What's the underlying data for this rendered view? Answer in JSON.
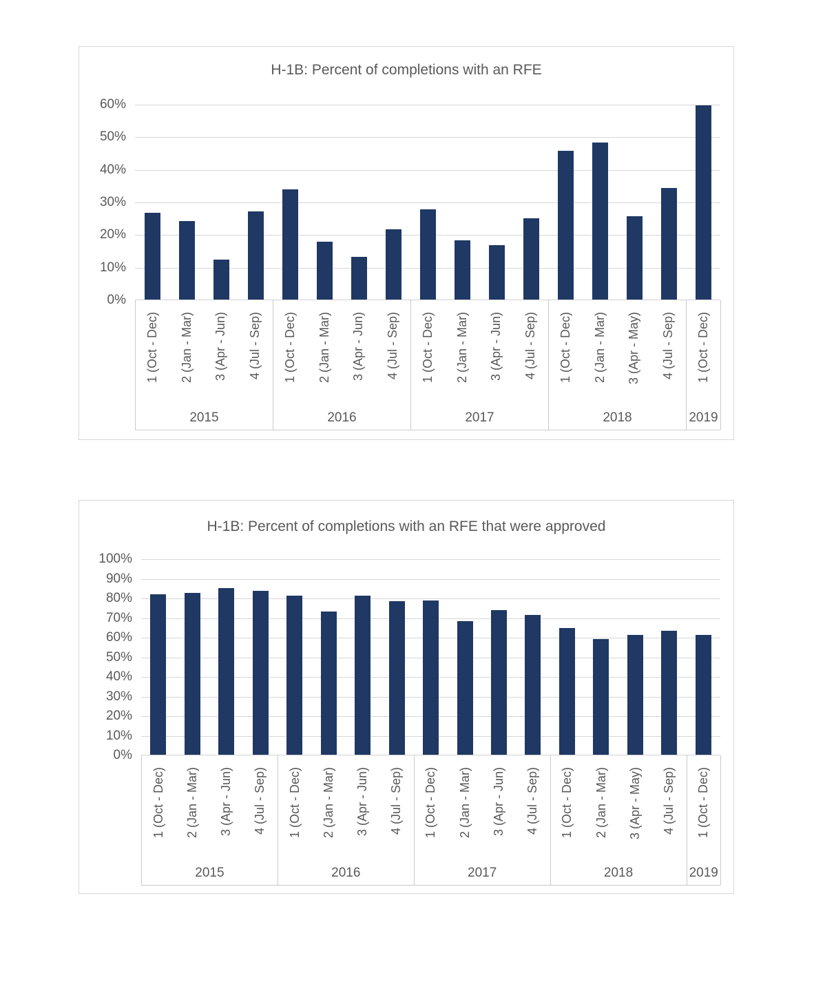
{
  "colors": {
    "bar": "#1F3864",
    "text": "#595959",
    "gridline": "#D7D7D7",
    "axis_table_border": "#C9C9C9"
  },
  "chart_data": [
    {
      "type": "bar",
      "title": "H-1B: Percent of completions with an RFE",
      "ylabel": "",
      "xlabel": "",
      "ylim": [
        0,
        60
      ],
      "ytick_step": 10,
      "yticks": [
        "0%",
        "10%",
        "20%",
        "30%",
        "40%",
        "50%",
        "60%"
      ],
      "grid": true,
      "legend": "none",
      "bar_color": "#1F3864",
      "groups": [
        {
          "year": "2015",
          "quarters": [
            "1 (Oct - Dec)",
            "2 (Jan - Mar)",
            "3 (Apr - Jun)",
            "4 (Jul - Sep)"
          ]
        },
        {
          "year": "2016",
          "quarters": [
            "1 (Oct - Dec)",
            "2 (Jan - Mar)",
            "3 (Apr - Jun)",
            "4 (Jul - Sep)"
          ]
        },
        {
          "year": "2017",
          "quarters": [
            "1 (Oct - Dec)",
            "2 (Jan - Mar)",
            "3 (Apr - Jun)",
            "4 (Jul - Sep)"
          ]
        },
        {
          "year": "2018",
          "quarters": [
            "1 (Oct - Dec)",
            "2 (Jan - Mar)",
            "3 (Apr - May)",
            "4 (Jul - Sep)"
          ]
        },
        {
          "year": "2019",
          "quarters": [
            "1 (Oct - Dec)"
          ]
        }
      ],
      "values": [
        26.6,
        24.1,
        12.3,
        27.1,
        33.9,
        17.8,
        13.1,
        21.6,
        27.6,
        18.1,
        16.8,
        24.9,
        45.6,
        48.1,
        25.5,
        34.3,
        59.6
      ]
    },
    {
      "type": "bar",
      "title": "H-1B: Percent of completions with an RFE that were approved",
      "ylabel": "",
      "xlabel": "",
      "ylim": [
        0,
        100
      ],
      "ytick_step": 10,
      "yticks": [
        "0%",
        "10%",
        "20%",
        "30%",
        "40%",
        "50%",
        "60%",
        "70%",
        "80%",
        "90%",
        "100%"
      ],
      "grid": true,
      "legend": "none",
      "bar_color": "#1F3864",
      "groups": [
        {
          "year": "2015",
          "quarters": [
            "1 (Oct - Dec)",
            "2 (Jan - Mar)",
            "3 (Apr - Jun)",
            "4 (Jul - Sep)"
          ]
        },
        {
          "year": "2016",
          "quarters": [
            "1 (Oct - Dec)",
            "2 (Jan - Mar)",
            "3 (Apr - Jun)",
            "4 (Jul - Sep)"
          ]
        },
        {
          "year": "2017",
          "quarters": [
            "1 (Oct - Dec)",
            "2 (Jan - Mar)",
            "3 (Apr - Jun)",
            "4 (Jul - Sep)"
          ]
        },
        {
          "year": "2018",
          "quarters": [
            "1 (Oct - Dec)",
            "2 (Jan - Mar)",
            "3 (Apr - May)",
            "4 (Jul - Sep)"
          ]
        },
        {
          "year": "2019",
          "quarters": [
            "1 (Oct - Dec)"
          ]
        }
      ],
      "values": [
        81.6,
        82.3,
        85.0,
        83.6,
        80.9,
        73.0,
        81.0,
        78.2,
        78.7,
        68.2,
        73.8,
        71.1,
        64.6,
        59.0,
        61.2,
        63.2,
        61.2
      ]
    }
  ]
}
